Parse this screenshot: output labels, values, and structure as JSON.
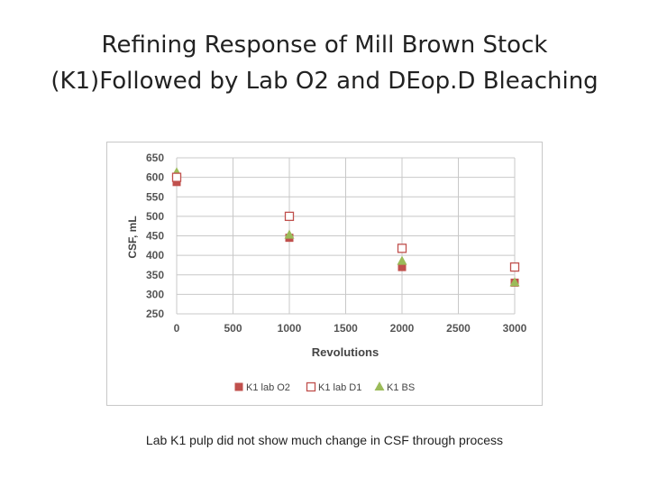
{
  "title_lines": [
    "Refining Response of Mill Brown Stock",
    "(K1)Followed by Lab O2 and DEop.D Bleaching"
  ],
  "caption": "Lab K1 pulp did not show much change in CSF through process",
  "chart_data": {
    "type": "scatter",
    "xlabel": "Revolutions",
    "ylabel": "CSF, mL",
    "xlim": [
      0,
      3000
    ],
    "ylim": [
      250,
      650
    ],
    "xticks": [
      0,
      500,
      1000,
      1500,
      2000,
      2500,
      3000
    ],
    "yticks": [
      250,
      300,
      350,
      400,
      450,
      500,
      550,
      600,
      650
    ],
    "grid": true,
    "legend_position": "bottom",
    "series": [
      {
        "name": "K1 lab O2",
        "marker": "square-filled",
        "color": "#c0504d",
        "x": [
          0,
          1000,
          2000,
          3000
        ],
        "y": [
          588,
          445,
          370,
          330
        ]
      },
      {
        "name": "K1 lab D1",
        "marker": "square-open",
        "color": "#c0504d",
        "x": [
          0,
          1000,
          2000,
          3000
        ],
        "y": [
          600,
          500,
          418,
          370
        ]
      },
      {
        "name": "K1 BS",
        "marker": "triangle",
        "color": "#9bbb59",
        "x": [
          0,
          1000,
          2000,
          3000
        ],
        "y": [
          612,
          452,
          385,
          330
        ]
      }
    ]
  }
}
